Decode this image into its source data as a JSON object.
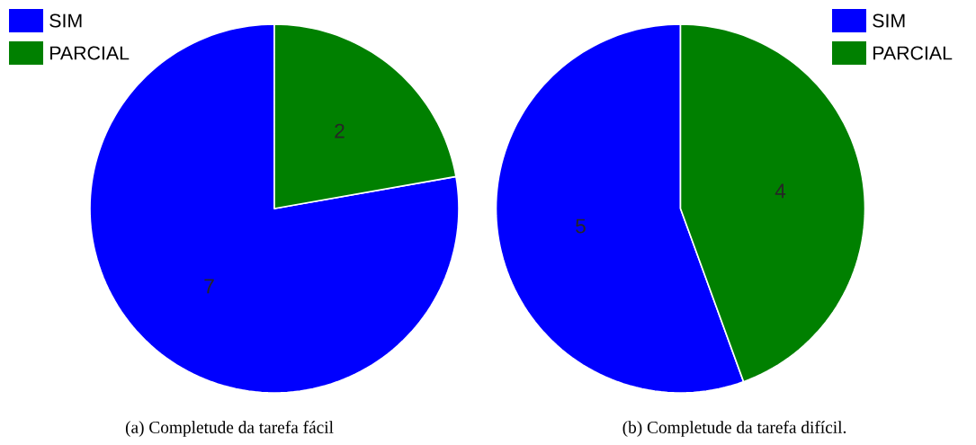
{
  "chart_data": [
    {
      "type": "pie",
      "title": "(a) Completude da tarefa fácil",
      "categories": [
        "SIM",
        "PARCIAL"
      ],
      "values": [
        7,
        2
      ],
      "colors": [
        "#0000ff",
        "#008000"
      ],
      "data_labels": true,
      "legend": "top left"
    },
    {
      "type": "pie",
      "title": "(b) Completude da tarefa difícil.",
      "categories": [
        "SIM",
        "PARCIAL"
      ],
      "values": [
        5,
        4
      ],
      "colors": [
        "#0000ff",
        "#008000"
      ],
      "data_labels": true,
      "legend": "top right"
    }
  ]
}
